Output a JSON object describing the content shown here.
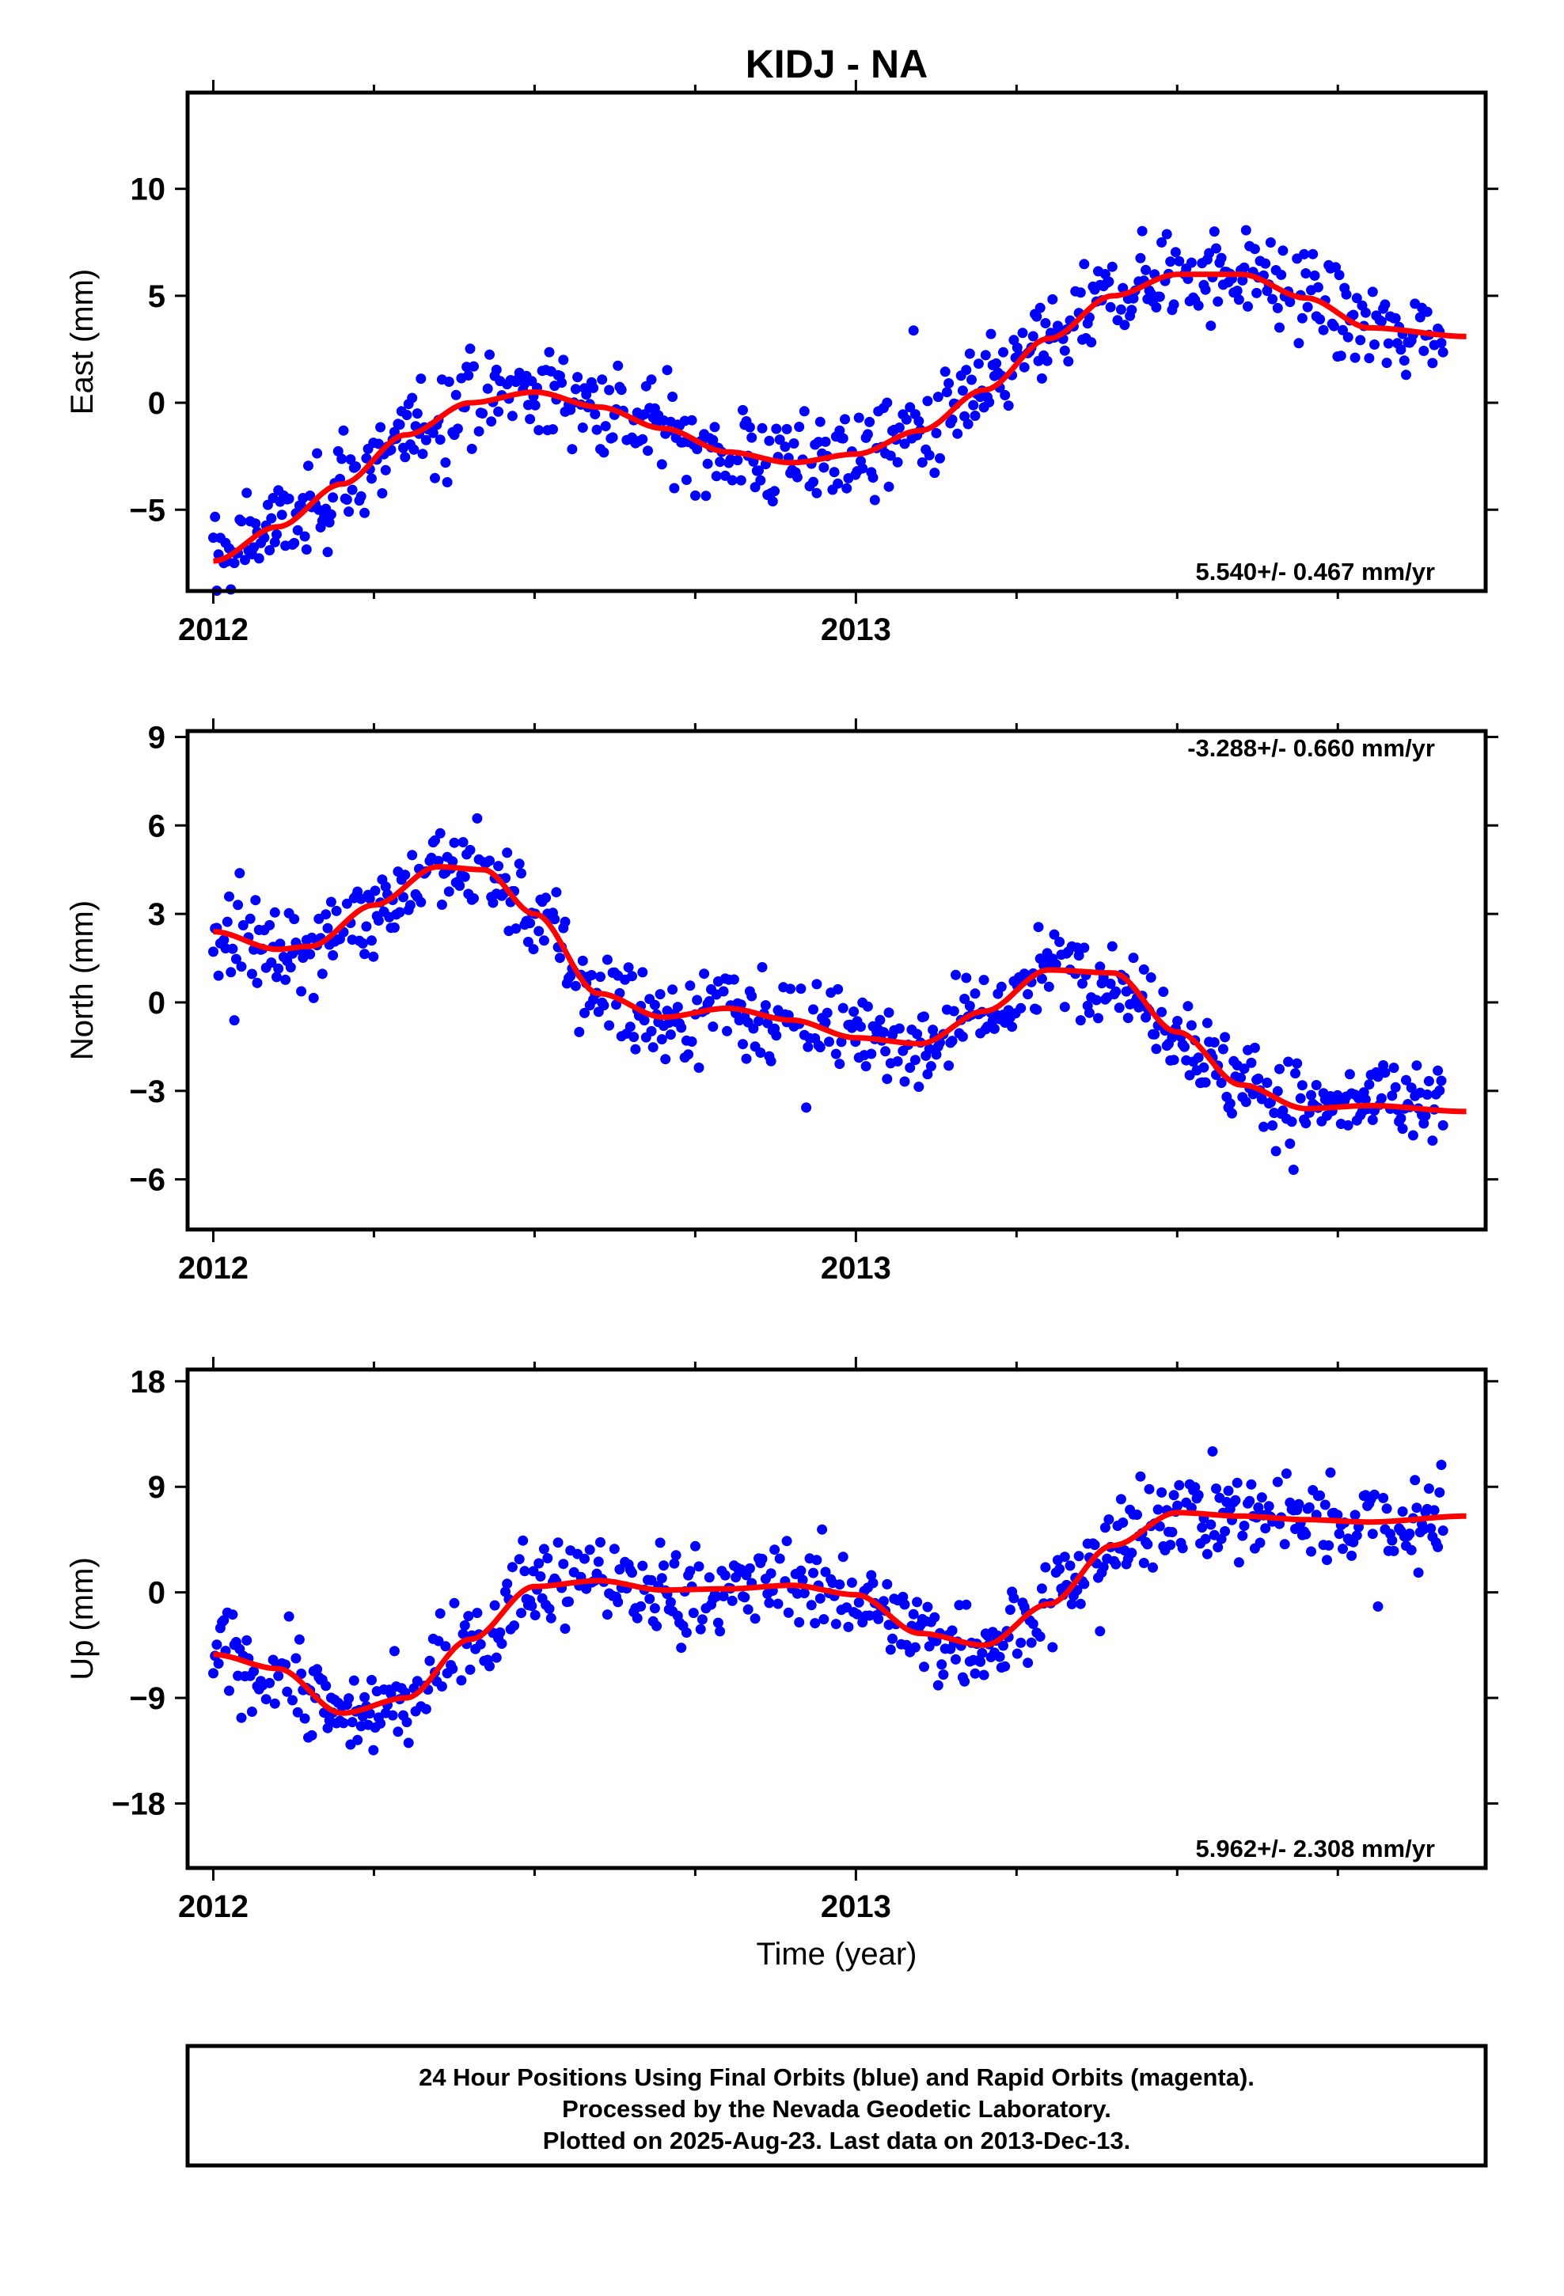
{
  "title": "KIDJ - NA",
  "caption": {
    "line1": "24 Hour Positions Using Final Orbits (blue) and Rapid Orbits (magenta).",
    "line2": "Processed by the Nevada Geodetic Laboratory.",
    "line3": "Plotted on 2025-Aug-23. Last data on 2013-Dec-13."
  },
  "colors": {
    "points": "#0000ff",
    "fit": "#ff0000",
    "frame": "#000000"
  },
  "chart_data": [
    {
      "type": "scatter",
      "ylabel": "East (mm)",
      "xlabel": "",
      "xlim": [
        2011.96,
        2013.98
      ],
      "ylim": [
        -8.8,
        14.5
      ],
      "xticks": [
        2012,
        2013
      ],
      "xtick_labels": [
        "2012",
        "2013"
      ],
      "yticks": [
        -5,
        0,
        5,
        10
      ],
      "ytick_labels": [
        "−5",
        "0",
        "5",
        "10"
      ],
      "rate": "5.540+/- 0.467 mm/yr",
      "rate_position": "bottom-right",
      "grid": false,
      "fit": {
        "x": [
          2012.0,
          2012.1,
          2012.2,
          2012.3,
          2012.4,
          2012.5,
          2012.6,
          2012.7,
          2012.8,
          2012.9,
          2013.0,
          2013.1,
          2013.2,
          2013.3,
          2013.4,
          2013.5,
          2013.6,
          2013.7,
          2013.8,
          2013.95
        ],
        "y": [
          -7.4,
          -5.8,
          -3.8,
          -1.5,
          0.0,
          0.5,
          -0.2,
          -1.2,
          -2.3,
          -2.8,
          -2.4,
          -1.3,
          0.6,
          3.0,
          5.0,
          6.0,
          6.0,
          4.9,
          3.5,
          3.1
        ]
      }
    },
    {
      "type": "scatter",
      "ylabel": "North (mm)",
      "xlabel": "",
      "xlim": [
        2011.96,
        2013.98
      ],
      "ylim": [
        -7.7,
        9.2
      ],
      "xticks": [
        2012,
        2013
      ],
      "xtick_labels": [
        "2012",
        "2013"
      ],
      "yticks": [
        -6,
        -3,
        0,
        3,
        6,
        9
      ],
      "ytick_labels": [
        "−6",
        "−3",
        "0",
        "3",
        "6",
        "9"
      ],
      "rate": "-3.288+/- 0.660 mm/yr",
      "rate_position": "top-right",
      "grid": false,
      "fit": {
        "x": [
          2012.0,
          2012.1,
          2012.15,
          2012.25,
          2012.35,
          2012.42,
          2012.5,
          2012.6,
          2012.7,
          2012.8,
          2012.9,
          2013.0,
          2013.1,
          2013.2,
          2013.3,
          2013.4,
          2013.5,
          2013.6,
          2013.7,
          2013.8,
          2013.95
        ],
        "y": [
          2.4,
          1.8,
          1.9,
          3.3,
          4.6,
          4.5,
          3.0,
          0.3,
          -0.5,
          -0.2,
          -0.6,
          -1.2,
          -1.4,
          -0.3,
          1.1,
          1.0,
          -1.0,
          -2.8,
          -3.6,
          -3.5,
          -3.7
        ]
      }
    },
    {
      "type": "scatter",
      "ylabel": "Up (mm)",
      "xlabel": "Time (year)",
      "xlim": [
        2011.96,
        2013.98
      ],
      "ylim": [
        -23.5,
        19
      ],
      "xticks": [
        2012,
        2013
      ],
      "xtick_labels": [
        "2012",
        "2013"
      ],
      "yticks": [
        -18,
        -9,
        0,
        9,
        18
      ],
      "ytick_labels": [
        "−18",
        "−9",
        "0",
        "9",
        "18"
      ],
      "rate": "5.962+/- 2.308 mm/yr",
      "rate_position": "bottom-right",
      "grid": false,
      "fit": {
        "x": [
          2012.0,
          2012.1,
          2012.2,
          2012.3,
          2012.4,
          2012.5,
          2012.6,
          2012.7,
          2012.8,
          2012.9,
          2013.0,
          2013.1,
          2013.2,
          2013.3,
          2013.4,
          2013.5,
          2013.6,
          2013.7,
          2013.8,
          2013.95
        ],
        "y": [
          -5.3,
          -6.5,
          -10.3,
          -9.0,
          -4.0,
          0.5,
          1.0,
          0.2,
          0.3,
          0.6,
          -0.2,
          -3.5,
          -4.5,
          -1.0,
          4.0,
          6.8,
          6.5,
          6.2,
          6.0,
          6.5
        ]
      }
    }
  ]
}
